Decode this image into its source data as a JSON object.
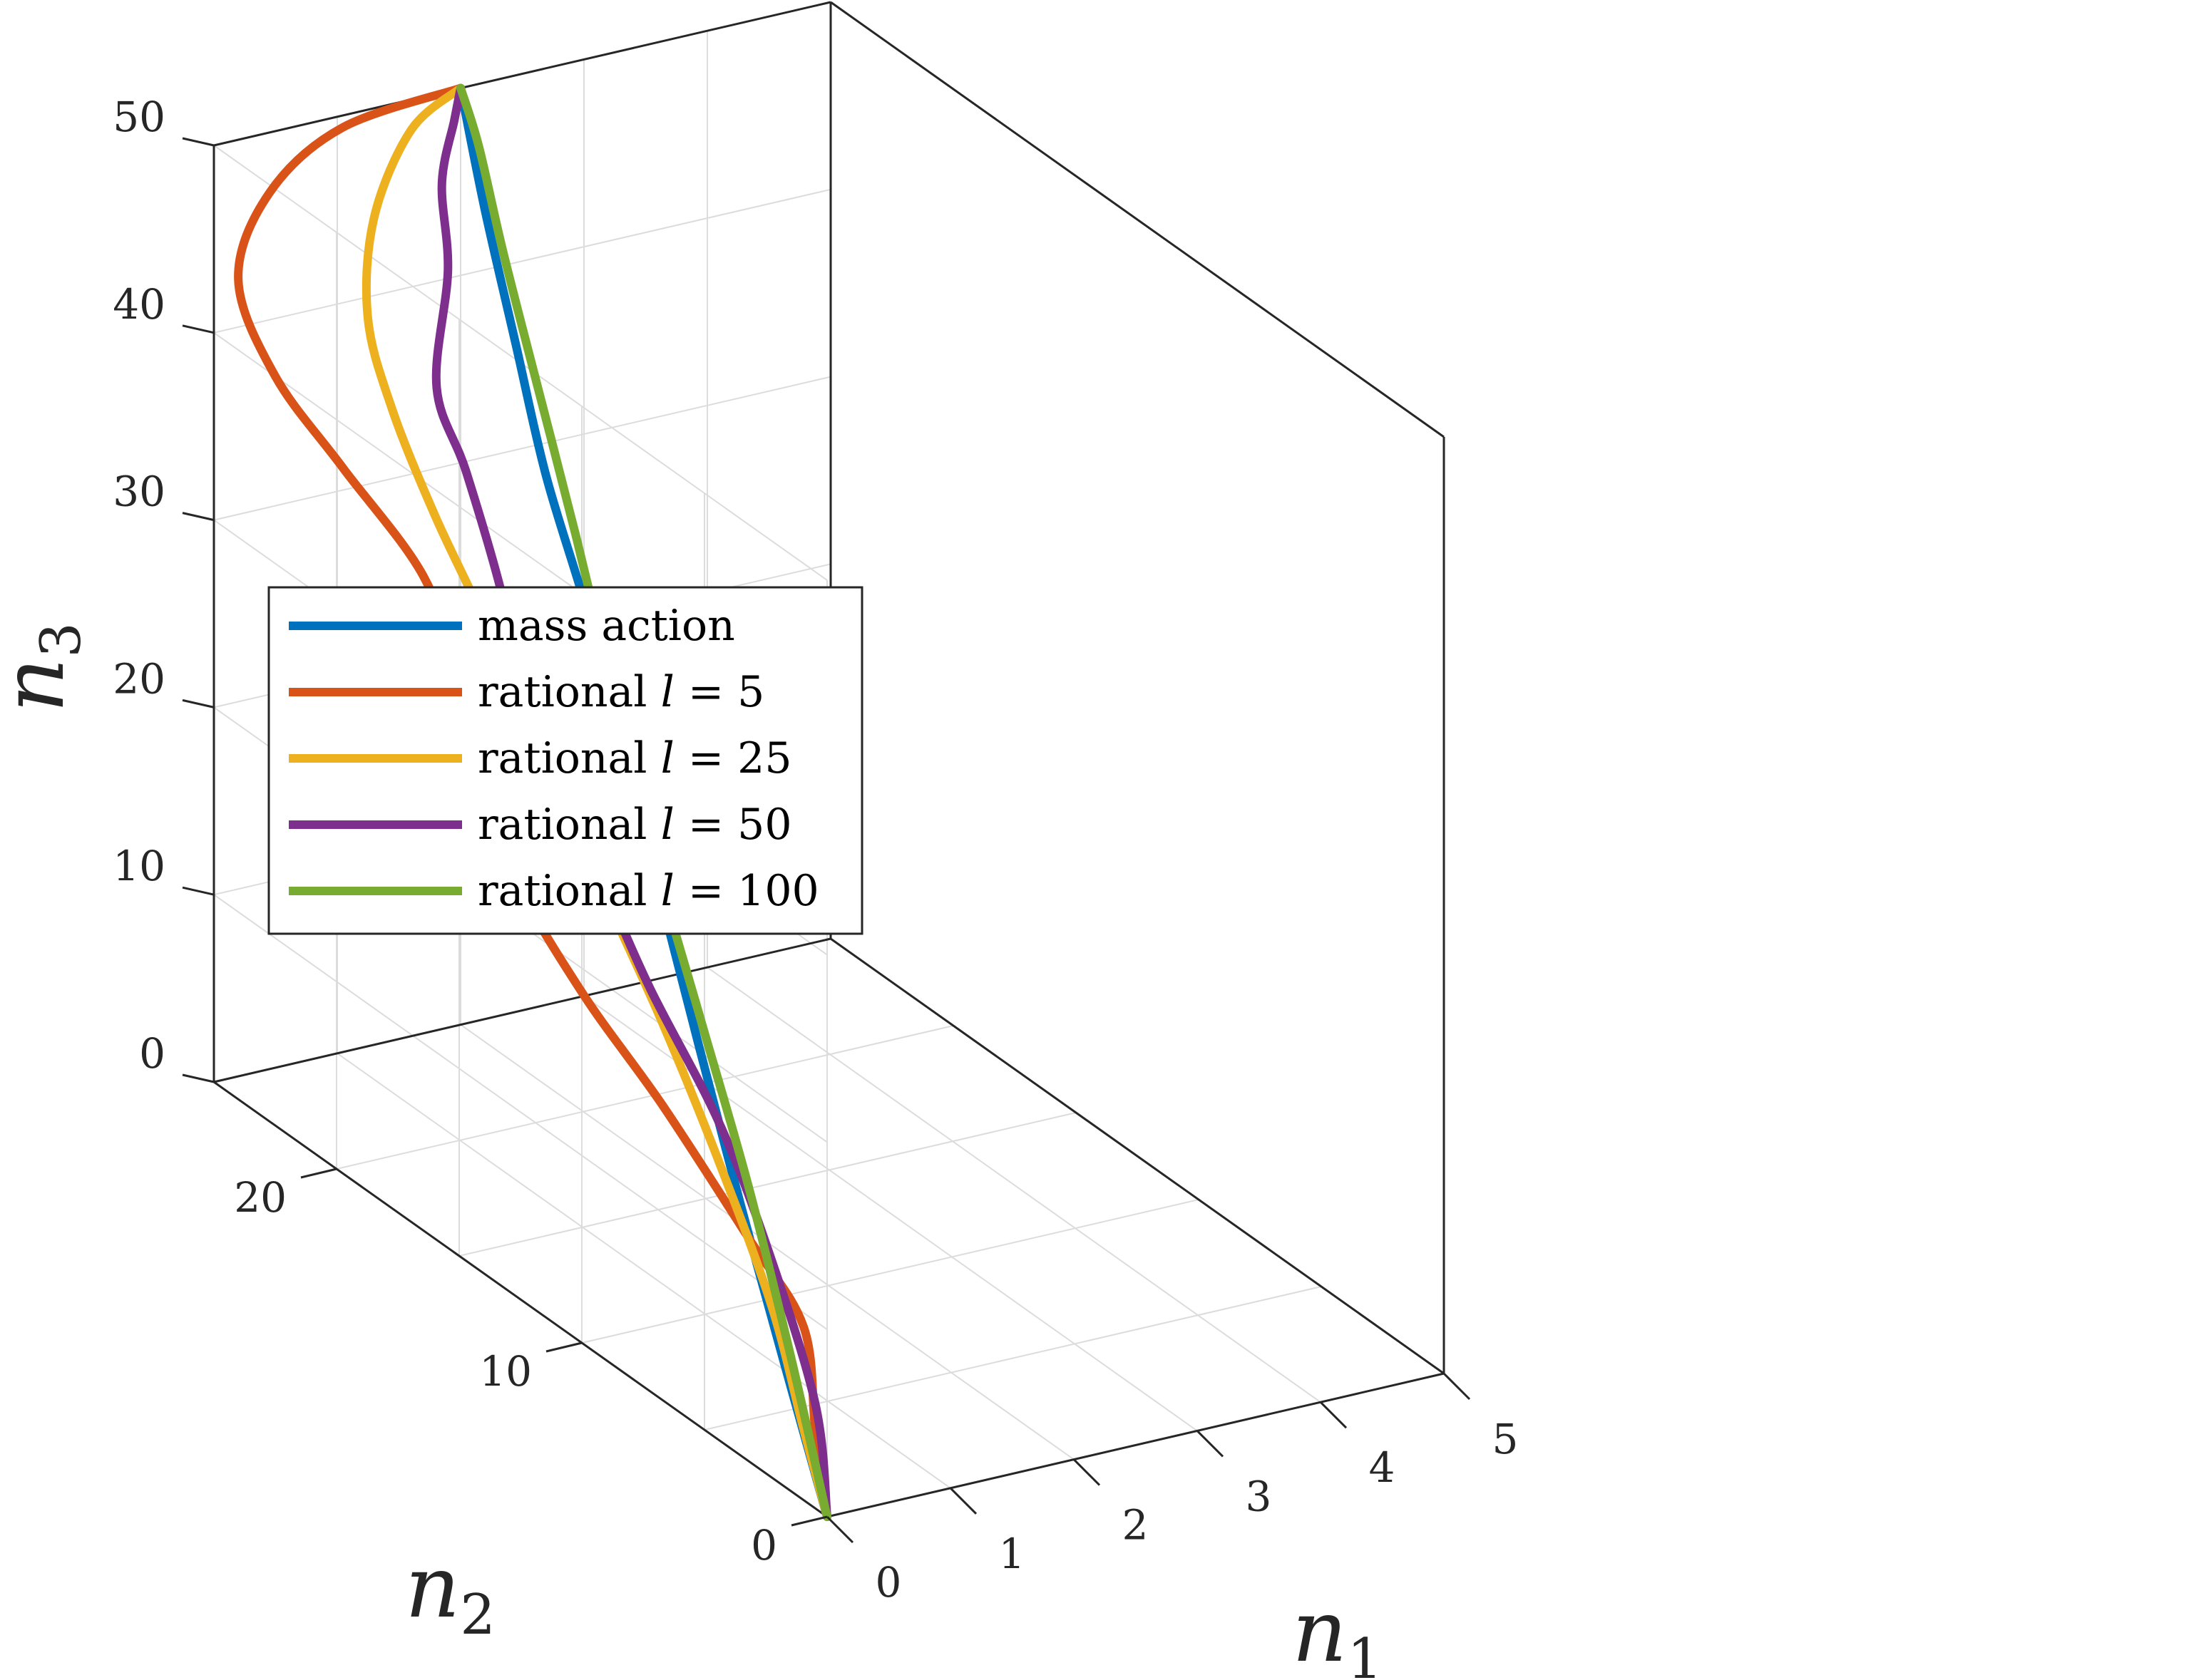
{
  "chart_data": {
    "type": "line",
    "axes": {
      "x": {
        "label": "n",
        "subscript": "1",
        "range": [
          0,
          5
        ],
        "ticks": [
          0,
          1,
          2,
          3,
          4,
          5
        ]
      },
      "y": {
        "label": "n",
        "subscript": "2",
        "range": [
          0,
          25
        ],
        "ticks": [
          0,
          10,
          20
        ]
      },
      "z": {
        "label": "n",
        "subscript": "3",
        "range": [
          0,
          50
        ],
        "ticks": [
          0,
          10,
          20,
          30,
          40,
          50
        ]
      }
    },
    "grid": true,
    "legend": {
      "placement": "left",
      "entries": [
        {
          "text": "mass action",
          "var": "",
          "value": ""
        },
        {
          "text": "rational ",
          "var": "l",
          "value": " = 5"
        },
        {
          "text": "rational ",
          "var": "l",
          "value": " = 25"
        },
        {
          "text": "rational ",
          "var": "l",
          "value": " = 50"
        },
        {
          "text": "rational ",
          "var": "l",
          "value": " = 100"
        }
      ]
    },
    "series": [
      {
        "name": "mass action",
        "color": "#0072BD",
        "points": [
          [
            0,
            0,
            0
          ],
          [
            0.3,
            3.2,
            4.5
          ],
          [
            0.6,
            6.5,
            9.5
          ],
          [
            0.85,
            9.5,
            15
          ],
          [
            1.05,
            12,
            20
          ],
          [
            1.25,
            14.5,
            25
          ],
          [
            1.45,
            17,
            30
          ],
          [
            1.6,
            19.5,
            35
          ],
          [
            1.75,
            21.5,
            40
          ],
          [
            1.9,
            23.5,
            45
          ],
          [
            2,
            25,
            50
          ]
        ]
      },
      {
        "name": "rational l = 5",
        "color": "#D95319",
        "points": [
          [
            0,
            0,
            0
          ],
          [
            0.6,
            3.5,
            0.5
          ],
          [
            1.3,
            7.5,
            1.2
          ],
          [
            1.55,
            11,
            2.3
          ],
          [
            1.65,
            15,
            5.5
          ],
          [
            1.4,
            17,
            10
          ],
          [
            1.1,
            18.3,
            15.5
          ],
          [
            1.0,
            19,
            20
          ],
          [
            0.95,
            19.8,
            25
          ],
          [
            0.8,
            20.5,
            30
          ],
          [
            0.35,
            21.5,
            35.5
          ],
          [
            0,
            22.5,
            40
          ],
          [
            -0.2,
            23,
            45
          ],
          [
            0.25,
            24,
            48
          ],
          [
            1.0,
            24.8,
            49.6
          ],
          [
            2,
            25,
            50
          ]
        ]
      },
      {
        "name": "rational l = 25",
        "color": "#EDB120",
        "points": [
          [
            0,
            0,
            0
          ],
          [
            0.5,
            3.5,
            0.8
          ],
          [
            1.05,
            7.5,
            2.5
          ],
          [
            1.35,
            11,
            6
          ],
          [
            1.55,
            14.5,
            10.5
          ],
          [
            1.45,
            16.5,
            16
          ],
          [
            1.25,
            18,
            22
          ],
          [
            1.1,
            19.5,
            28
          ],
          [
            0.9,
            20.5,
            33
          ],
          [
            0.75,
            21.5,
            38
          ],
          [
            0.75,
            22.5,
            42
          ],
          [
            1.0,
            23.5,
            46
          ],
          [
            1.5,
            24.5,
            49
          ],
          [
            2,
            25,
            50
          ]
        ]
      },
      {
        "name": "rational l = 50",
        "color": "#7E2F8E",
        "points": [
          [
            0,
            0,
            0
          ],
          [
            0.5,
            3,
            2.5
          ],
          [
            1.0,
            7.5,
            6
          ],
          [
            1.3,
            11,
            9
          ],
          [
            1.45,
            14.5,
            12.5
          ],
          [
            1.45,
            16.5,
            16.5
          ],
          [
            1.25,
            18.5,
            23.5
          ],
          [
            1.25,
            19.5,
            29
          ],
          [
            1.15,
            20.5,
            35
          ],
          [
            1.05,
            21.2,
            39
          ],
          [
            1.4,
            22.5,
            43.5
          ],
          [
            1.55,
            23.5,
            47
          ],
          [
            1.85,
            24.5,
            49
          ],
          [
            2,
            25,
            50
          ]
        ]
      },
      {
        "name": "rational l = 100",
        "color": "#77AC30",
        "points": [
          [
            0,
            0,
            0
          ],
          [
            0.2,
            2.5,
            6
          ],
          [
            0.45,
            5.5,
            12
          ],
          [
            0.65,
            8.5,
            18
          ],
          [
            0.85,
            11.5,
            24
          ],
          [
            1.05,
            14,
            29.5
          ],
          [
            1.25,
            16.5,
            35
          ],
          [
            1.45,
            19,
            40
          ],
          [
            1.65,
            21.5,
            45
          ],
          [
            1.85,
            23.5,
            48.5
          ],
          [
            2,
            25,
            50
          ]
        ]
      }
    ]
  }
}
